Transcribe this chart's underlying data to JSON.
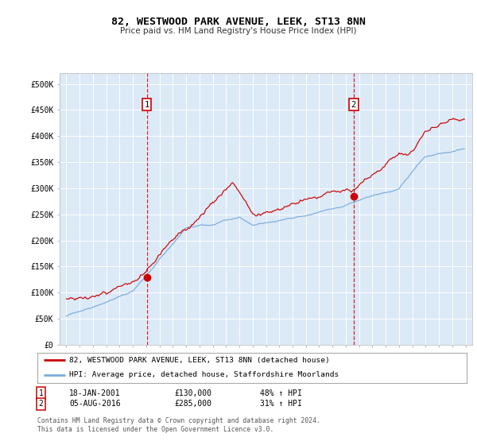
{
  "title": "82, WESTWOOD PARK AVENUE, LEEK, ST13 8NN",
  "subtitle": "Price paid vs. HM Land Registry's House Price Index (HPI)",
  "plot_bg_color": "#dce9f7",
  "legend_line1": "82, WESTWOOD PARK AVENUE, LEEK, ST13 8NN (detached house)",
  "legend_line2": "HPI: Average price, detached house, Staffordshire Moorlands",
  "footnote": "Contains HM Land Registry data © Crown copyright and database right 2024.\nThis data is licensed under the Open Government Licence v3.0.",
  "sale1_date": "18-JAN-2001",
  "sale1_price": "£130,000",
  "sale1_hpi": "48% ↑ HPI",
  "sale2_date": "05-AUG-2016",
  "sale2_price": "£285,000",
  "sale2_hpi": "31% ↑ HPI",
  "sale1_x": 2001.05,
  "sale1_y": 130000,
  "sale2_x": 2016.59,
  "sale2_y": 285000,
  "ylim": [
    0,
    520000
  ],
  "xlim": [
    1994.5,
    2025.5
  ],
  "red_color": "#cc0000",
  "blue_color": "#7aaddc",
  "yticks": [
    0,
    50000,
    100000,
    150000,
    200000,
    250000,
    300000,
    350000,
    400000,
    450000,
    500000
  ],
  "ytick_labels": [
    "£0",
    "£50K",
    "£100K",
    "£150K",
    "£200K",
    "£250K",
    "£300K",
    "£350K",
    "£400K",
    "£450K",
    "£500K"
  ]
}
